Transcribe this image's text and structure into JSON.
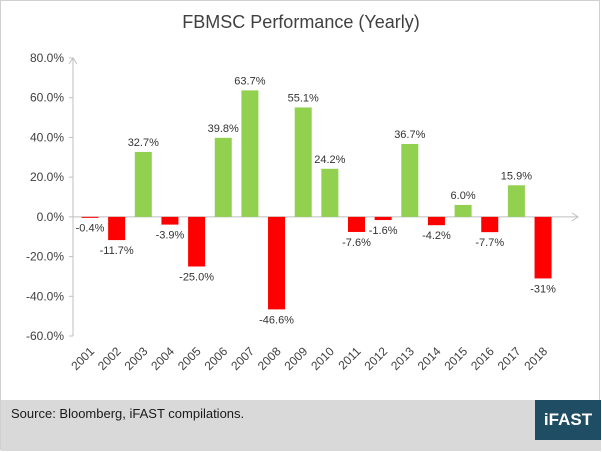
{
  "footer": {
    "source": "Source: Bloomberg, iFAST compilations.",
    "logo_text": "iFAST"
  },
  "colors": {
    "positive": "#92d050",
    "negative": "#ff0000",
    "axis": "#bfbfbf",
    "logo_bg": "#1f4e64"
  },
  "chart_data": {
    "type": "bar",
    "title": "FBMSC Performance (Yearly)",
    "xlabel": "",
    "ylabel": "",
    "categories": [
      "2001",
      "2002",
      "2003",
      "2004",
      "2005",
      "2006",
      "2007",
      "2008",
      "2009",
      "2010",
      "2011",
      "2012",
      "2013",
      "2014",
      "2015",
      "2016",
      "2017",
      "2018"
    ],
    "values": [
      -0.4,
      -11.7,
      32.7,
      -3.9,
      -25.0,
      39.8,
      63.7,
      -46.6,
      55.1,
      24.2,
      -7.6,
      -1.6,
      36.7,
      -4.2,
      6.0,
      -7.7,
      15.9,
      -31
    ],
    "data_labels": [
      "-0.4%",
      "-11.7%",
      "32.7%",
      "-3.9%",
      "-25.0%",
      "39.8%",
      "63.7%",
      "-46.6%",
      "55.1%",
      "24.2%",
      "-7.6%",
      "-1.6%",
      "36.7%",
      "-4.2%",
      "6.0%",
      "-7.7%",
      "15.9%",
      "-31%"
    ],
    "ylim": [
      -60,
      80
    ],
    "yticks": [
      80,
      60,
      40,
      20,
      0,
      -20,
      -40,
      -60
    ],
    "ytick_labels": [
      "80.0%",
      "60.0%",
      "40.0%",
      "20.0%",
      "0.0%",
      "-20.0%",
      "-40.0%",
      "-60.0%"
    ],
    "grid": false,
    "legend": "none"
  }
}
